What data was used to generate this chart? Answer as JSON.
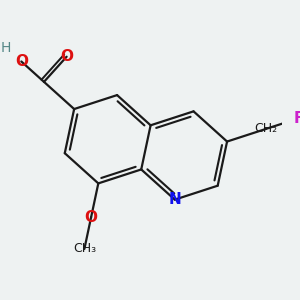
{
  "bg_color": "#eef2f2",
  "bond_color": "#1a1a1a",
  "bond_width": 1.6,
  "atom_colors": {
    "O": "#dd1111",
    "N": "#1111ee",
    "F": "#cc22cc",
    "C": "#1a1a1a",
    "H": "#558888"
  },
  "font_size": 11,
  "fig_size": [
    3.0,
    3.0
  ],
  "dpi": 100,
  "scale": 48,
  "ox": 148,
  "oy": 148
}
